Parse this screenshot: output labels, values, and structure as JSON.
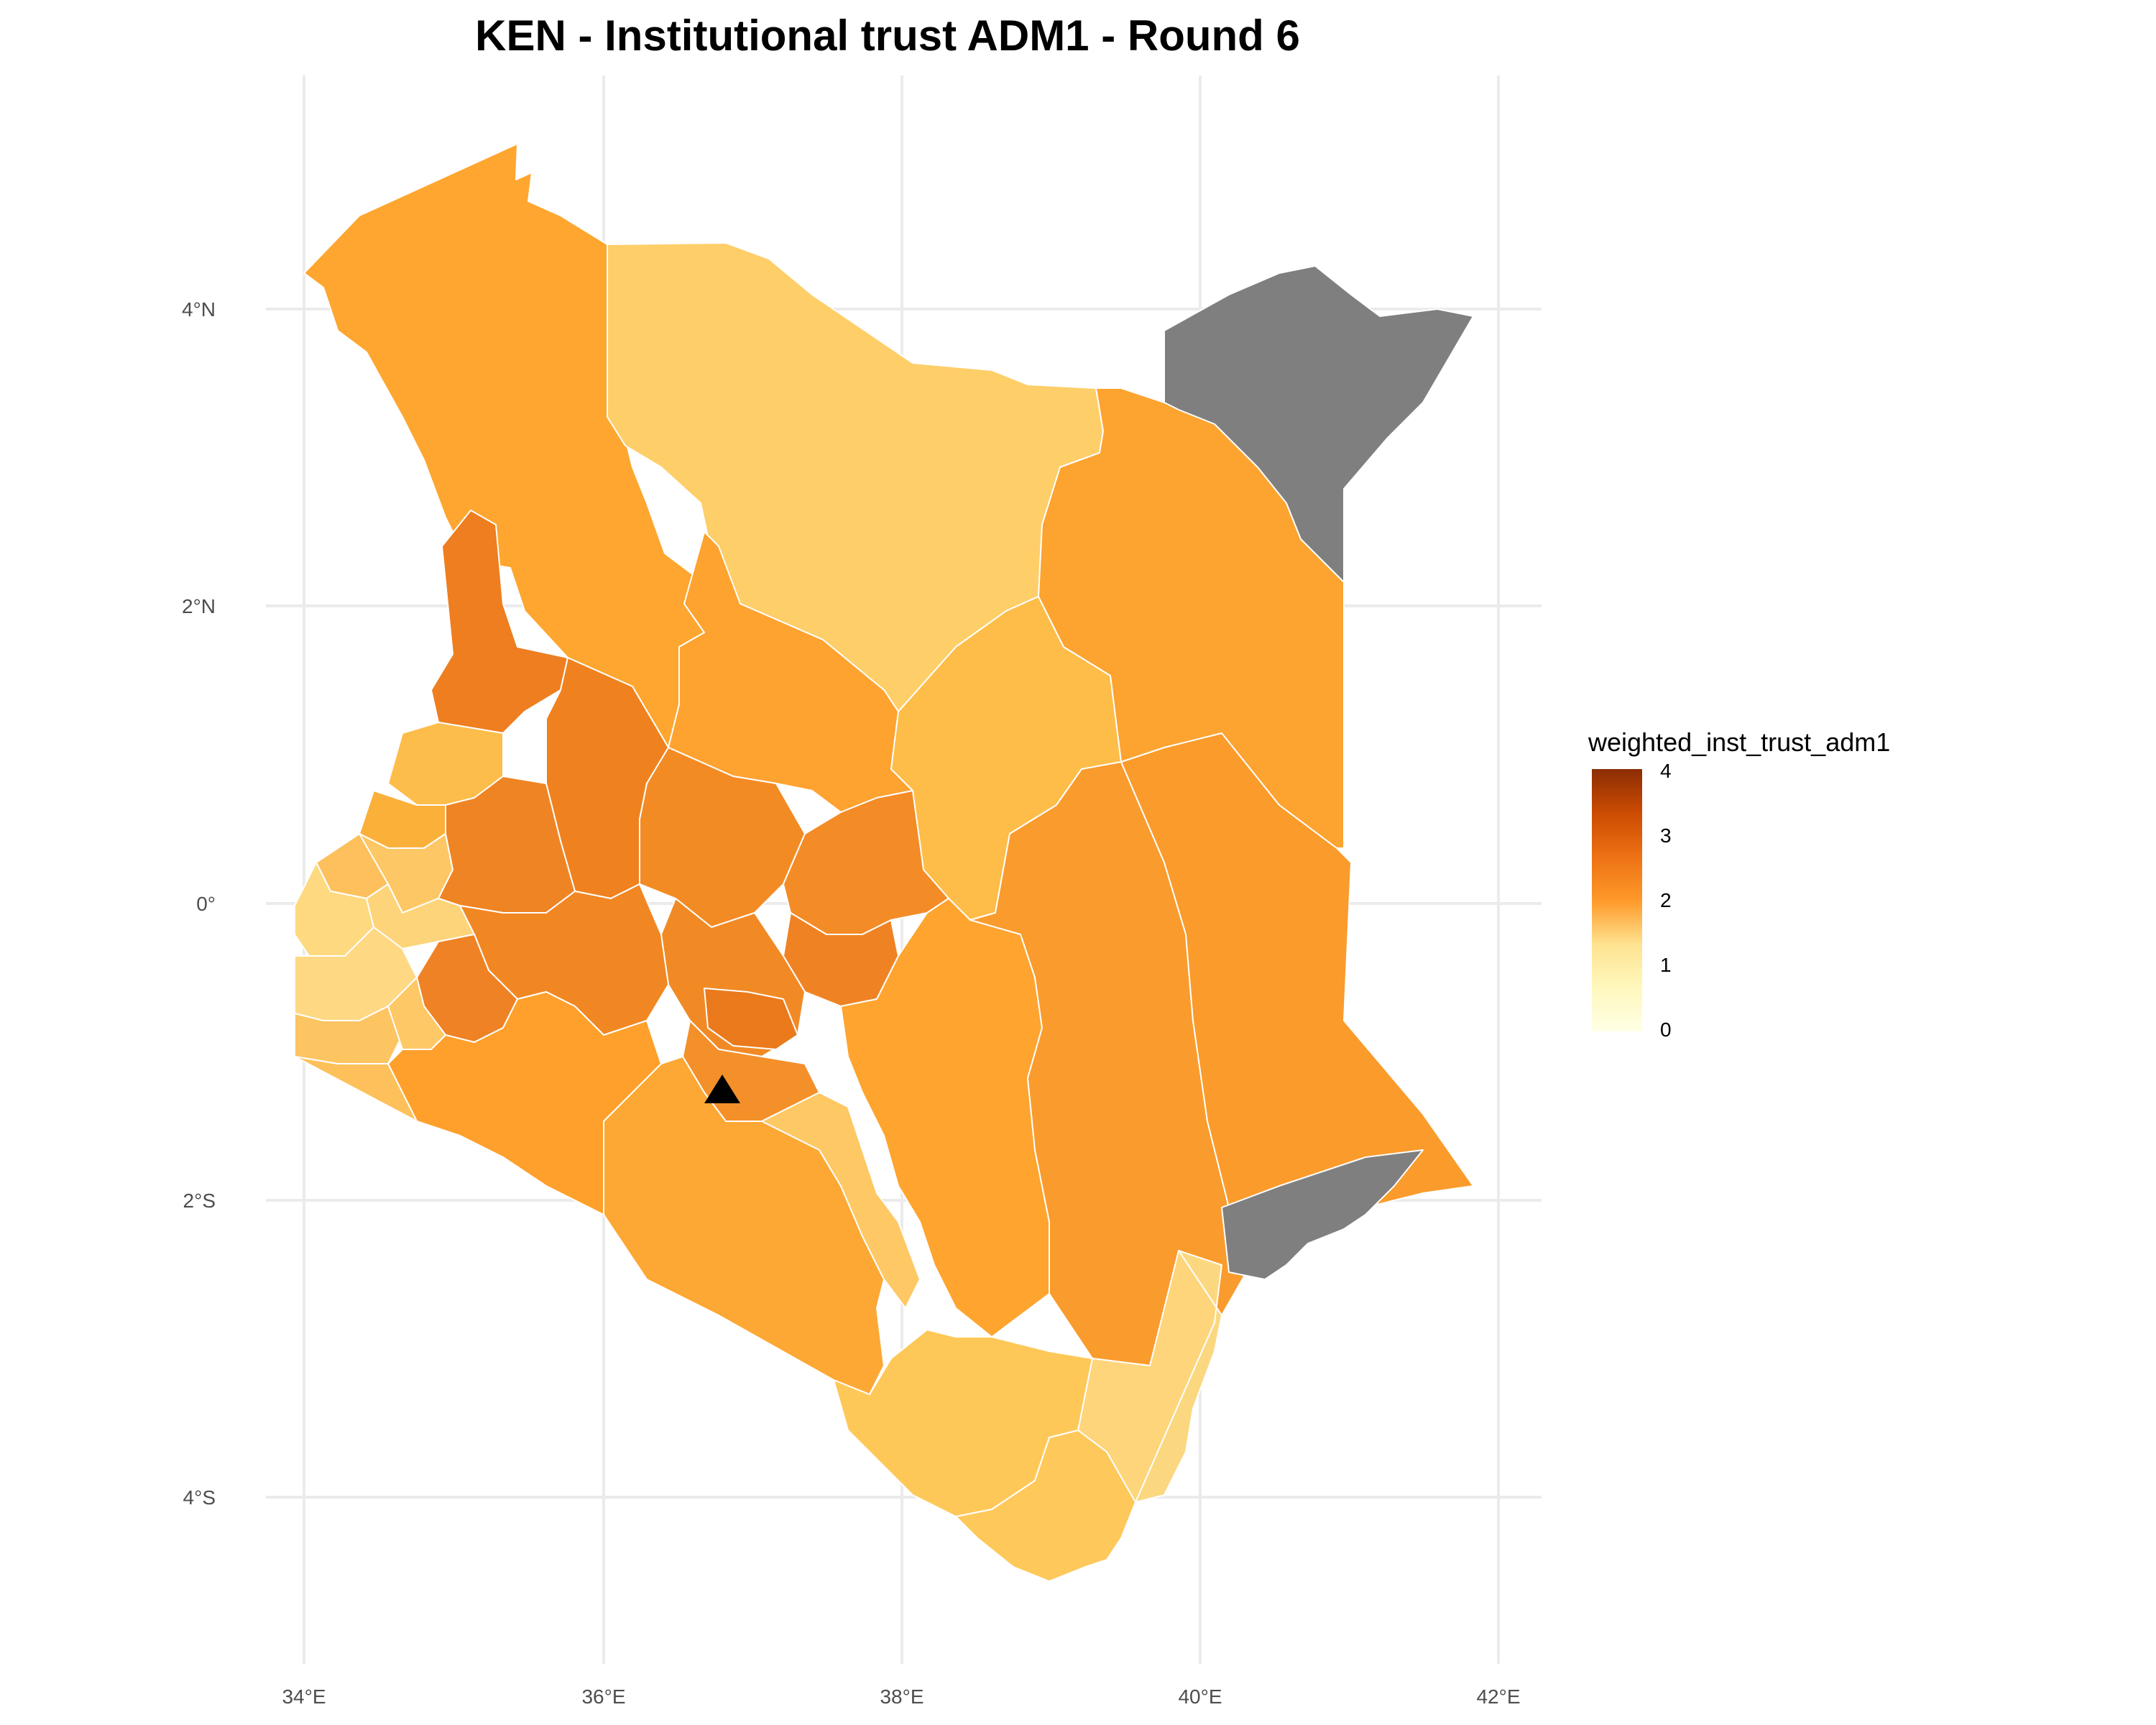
{
  "map": {
    "title": "KEN - Institutional trust ADM1 - Round 6",
    "x_axis": {
      "tick_labels": [
        "34°E",
        "36°E",
        "38°E",
        "40°E",
        "42°E"
      ]
    },
    "y_axis": {
      "tick_labels": [
        "4°N",
        "2°N",
        "0°",
        "2°S",
        "4°S"
      ]
    },
    "legend": {
      "title": "weighted_inst_trust_adm1",
      "min": 0,
      "max": 4,
      "tick_labels": [
        "4",
        "3",
        "2",
        "1",
        "0"
      ],
      "colors": [
        "#ffffe5",
        "#fee391",
        "#fec44f",
        "#fe9929",
        "#ec7014",
        "#cc4c02",
        "#8c2d04"
      ]
    },
    "colors": {
      "missing": "#7f7f7f",
      "grid": "#ebebeb",
      "boundary": "#ffffff",
      "marker": "#000000"
    },
    "marker": {
      "shape": "triangle",
      "lon": 36.82,
      "lat": -1.29
    }
  }
}
